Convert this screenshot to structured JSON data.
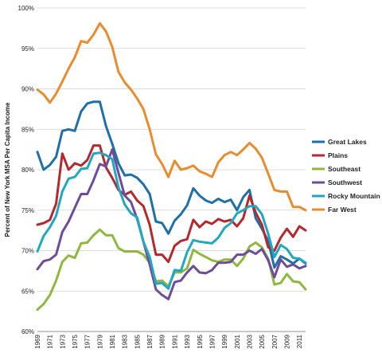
{
  "chart_data": {
    "type": "line",
    "ylabel": "Percent of New York MSA Per Capita Income",
    "xlabel": "",
    "ylim": [
      60,
      100
    ],
    "y_ticks": [
      "60%",
      "65%",
      "70%",
      "75%",
      "80%",
      "85%",
      "90%",
      "95%",
      "100%"
    ],
    "x_ticks": [
      "1969",
      "1971",
      "1973",
      "1975",
      "1977",
      "1979",
      "1981",
      "1983",
      "1985",
      "1987",
      "1989",
      "1991",
      "1993",
      "1995",
      "1997",
      "1999",
      "2001",
      "2003",
      "2005",
      "2007",
      "2009",
      "2011"
    ],
    "grid": true,
    "legend_position": "right",
    "x": [
      1969,
      1970,
      1971,
      1972,
      1973,
      1974,
      1975,
      1976,
      1977,
      1978,
      1979,
      1980,
      1981,
      1982,
      1983,
      1984,
      1985,
      1986,
      1987,
      1988,
      1989,
      1990,
      1991,
      1992,
      1993,
      1994,
      1995,
      1996,
      1997,
      1998,
      1999,
      2000,
      2001,
      2002,
      2003,
      2004,
      2005,
      2006,
      2007,
      2008,
      2009,
      2010,
      2011,
      2012
    ],
    "series": [
      {
        "name": "Great Lakes",
        "color": "#1f6fa8",
        "values": [
          82.2,
          80.0,
          80.6,
          81.6,
          84.8,
          85.0,
          84.8,
          87.2,
          88.2,
          88.4,
          88.4,
          85.4,
          83.2,
          80.8,
          79.3,
          79.4,
          79.0,
          78.2,
          77.0,
          73.6,
          73.4,
          72.1,
          73.7,
          74.5,
          75.6,
          77.7,
          76.8,
          76.2,
          75.9,
          76.4,
          76.0,
          76.3,
          75.0,
          76.6,
          77.5,
          74.0,
          72.7,
          71.2,
          67.9,
          69.3,
          68.9,
          68.4,
          69.0,
          68.4
        ]
      },
      {
        "name": "Plains",
        "color": "#b5282d",
        "values": [
          73.2,
          73.4,
          73.8,
          75.8,
          82.0,
          80.0,
          80.8,
          80.5,
          81.2,
          83.0,
          83.0,
          80.3,
          79.0,
          77.5,
          76.9,
          77.3,
          76.2,
          75.5,
          73.2,
          69.5,
          69.5,
          68.6,
          70.6,
          71.2,
          71.4,
          73.8,
          72.9,
          73.6,
          73.3,
          73.9,
          73.6,
          73.8,
          73.0,
          74.0,
          76.8,
          74.7,
          73.2,
          70.4,
          70.0,
          71.6,
          72.7,
          71.7,
          73.0,
          72.5
        ]
      },
      {
        "name": "Southeast",
        "color": "#8fb83e",
        "values": [
          62.7,
          63.4,
          64.5,
          66.3,
          68.6,
          69.4,
          69.1,
          70.9,
          71.0,
          71.9,
          72.6,
          71.9,
          71.9,
          70.3,
          69.9,
          69.9,
          69.9,
          69.5,
          68.5,
          66.2,
          66.3,
          65.6,
          67.3,
          67.3,
          67.8,
          70.1,
          69.6,
          69.2,
          68.8,
          68.6,
          68.9,
          68.9,
          68.1,
          69.0,
          70.5,
          71.0,
          70.4,
          69.0,
          65.8,
          66.0,
          67.1,
          66.2,
          66.1,
          65.2
        ]
      },
      {
        "name": "Southwest",
        "color": "#6e4c9a",
        "values": [
          67.7,
          68.7,
          68.9,
          69.5,
          72.3,
          73.6,
          75.3,
          77.0,
          77.0,
          78.7,
          80.7,
          80.4,
          82.5,
          79.6,
          76.8,
          76.0,
          73.9,
          71.1,
          68.3,
          65.2,
          64.5,
          64.0,
          66.1,
          66.3,
          67.3,
          68.1,
          67.3,
          67.2,
          67.6,
          68.5,
          68.5,
          68.6,
          69.5,
          69.5,
          70.0,
          69.6,
          70.2,
          68.8,
          66.7,
          68.9,
          68.0,
          68.3,
          67.8,
          68.1
        ]
      },
      {
        "name": "Rocky Mountain",
        "color": "#22a7c1",
        "values": [
          69.9,
          71.8,
          72.9,
          74.3,
          77.3,
          78.9,
          79.1,
          80.1,
          80.2,
          82.0,
          82.1,
          81.8,
          81.3,
          77.8,
          75.7,
          74.6,
          74.1,
          71.1,
          69.2,
          65.9,
          66.0,
          65.3,
          67.6,
          67.5,
          69.8,
          71.3,
          71.1,
          71.0,
          70.9,
          71.6,
          72.8,
          73.4,
          74.6,
          75.0,
          75.5,
          75.5,
          74.5,
          72.1,
          69.2,
          70.7,
          70.2,
          69.1,
          69.0,
          68.5
        ]
      },
      {
        "name": "Far West",
        "color": "#e98c2f",
        "values": [
          89.9,
          89.3,
          88.3,
          89.4,
          90.9,
          92.5,
          93.9,
          95.9,
          95.7,
          96.7,
          98.1,
          97.1,
          95.2,
          92.1,
          90.8,
          89.9,
          88.8,
          87.5,
          85.0,
          81.9,
          80.7,
          79.1,
          81.1,
          80.0,
          80.2,
          80.5,
          79.8,
          79.5,
          79.1,
          80.9,
          81.8,
          82.2,
          81.8,
          82.5,
          83.3,
          82.6,
          81.5,
          79.5,
          77.5,
          77.3,
          77.3,
          75.4,
          75.4,
          75.0
        ]
      }
    ]
  }
}
